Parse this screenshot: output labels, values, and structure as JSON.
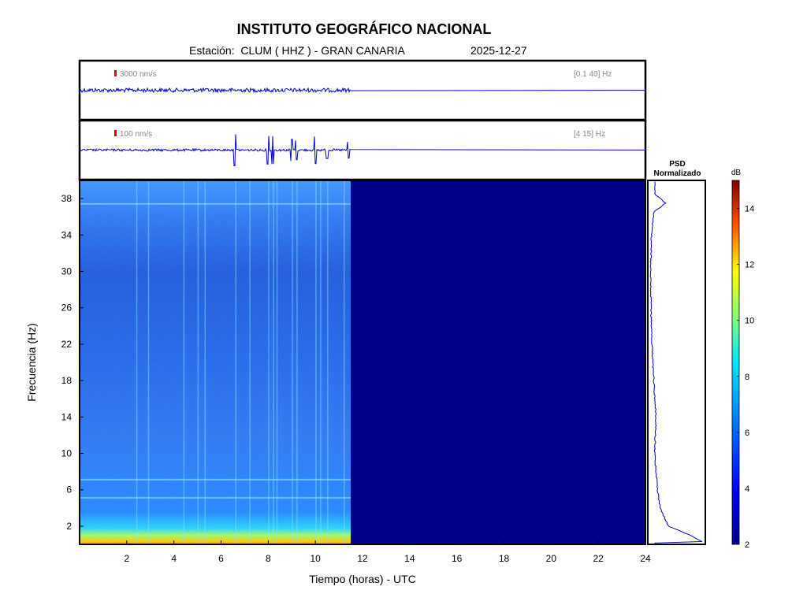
{
  "header": {
    "title": "INSTITUTO GEOGRÁFICO NACIONAL",
    "station_line": "Estación:  CLUM ( HHZ ) - GRAN CANARIA",
    "date": "2025-12-27"
  },
  "traces": [
    {
      "scale_label": "3000 nm/s",
      "band_label": "[0.1 40] Hz"
    },
    {
      "scale_label": "100 nm/s",
      "band_label": "[4 15] Hz"
    }
  ],
  "psd_panel": {
    "title_line1": "PSD",
    "title_line2": "Normalizado"
  },
  "colors": {
    "low": "#00008b",
    "scale_bar": "#e00000",
    "trace": "#0000cc",
    "tick_label": "#888888"
  },
  "chart_data": {
    "type": "heatmap",
    "xlabel": "Tiempo (horas) - UTC",
    "ylabel": "Frecuencia  (Hz)",
    "xlim": [
      0,
      24
    ],
    "ylim": [
      0,
      40
    ],
    "x_ticks": [
      2,
      4,
      6,
      8,
      10,
      12,
      14,
      16,
      18,
      20,
      22,
      24
    ],
    "y_ticks": [
      2,
      6,
      10,
      14,
      18,
      22,
      26,
      30,
      34,
      38
    ],
    "data_end_hour": 11.5,
    "colorbar": {
      "label": "dB",
      "range": [
        2,
        15
      ],
      "ticks": [
        2,
        4,
        6,
        8,
        10,
        12,
        14
      ]
    },
    "spectrogram_profile": [
      {
        "freq_hz": 0.5,
        "db": 12
      },
      {
        "freq_hz": 1.5,
        "db": 8.5
      },
      {
        "freq_hz": 3,
        "db": 6
      },
      {
        "freq_hz": 10,
        "db": 5
      },
      {
        "freq_hz": 20,
        "db": 4.5
      },
      {
        "freq_hz": 30,
        "db": 4.3
      },
      {
        "freq_hz": 37.5,
        "db": 6
      }
    ],
    "event_hours": [
      6.6,
      8.0,
      8.2,
      9.0,
      9.2,
      10.0,
      10.5,
      11.4
    ],
    "psd_curve": [
      {
        "freq_hz": 0.2,
        "value": 1.0
      },
      {
        "freq_hz": 1,
        "value": 0.75
      },
      {
        "freq_hz": 2,
        "value": 0.35
      },
      {
        "freq_hz": 4,
        "value": 0.2
      },
      {
        "freq_hz": 6,
        "value": 0.15
      },
      {
        "freq_hz": 10,
        "value": 0.1
      },
      {
        "freq_hz": 14,
        "value": 0.12
      },
      {
        "freq_hz": 18,
        "value": 0.08
      },
      {
        "freq_hz": 22,
        "value": 0.05
      },
      {
        "freq_hz": 26,
        "value": 0.03
      },
      {
        "freq_hz": 30,
        "value": 0.02
      },
      {
        "freq_hz": 34,
        "value": 0.04
      },
      {
        "freq_hz": 36.5,
        "value": 0.08
      },
      {
        "freq_hz": 37.5,
        "value": 0.3
      },
      {
        "freq_hz": 38.5,
        "value": 0.1
      },
      {
        "freq_hz": 40,
        "value": 0.1
      }
    ]
  }
}
